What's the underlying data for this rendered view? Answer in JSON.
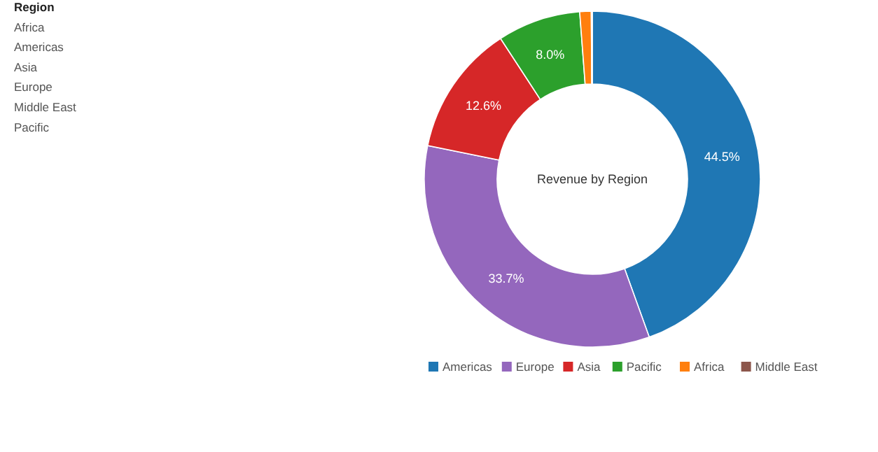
{
  "chart_data": {
    "type": "donut",
    "title": "Revenue by Region",
    "categories": [
      "Americas",
      "Europe",
      "Asia",
      "Pacific",
      "Africa",
      "Middle East"
    ],
    "values": [
      44.5,
      33.7,
      12.6,
      8.0,
      1.1,
      0.1
    ],
    "colors": [
      "#1f77b4",
      "#9467bd",
      "#d62728",
      "#2ca02c",
      "#ff7f0e",
      "#8c564b"
    ],
    "value_labels": [
      "44.5%",
      "33.7%",
      "12.6%",
      "8.0%",
      null,
      null
    ],
    "legend": "bottom",
    "annotations": [
      "Region",
      "Africa",
      "Americas",
      "Asia",
      "Europe",
      "Middle East",
      "Pacific"
    ]
  }
}
